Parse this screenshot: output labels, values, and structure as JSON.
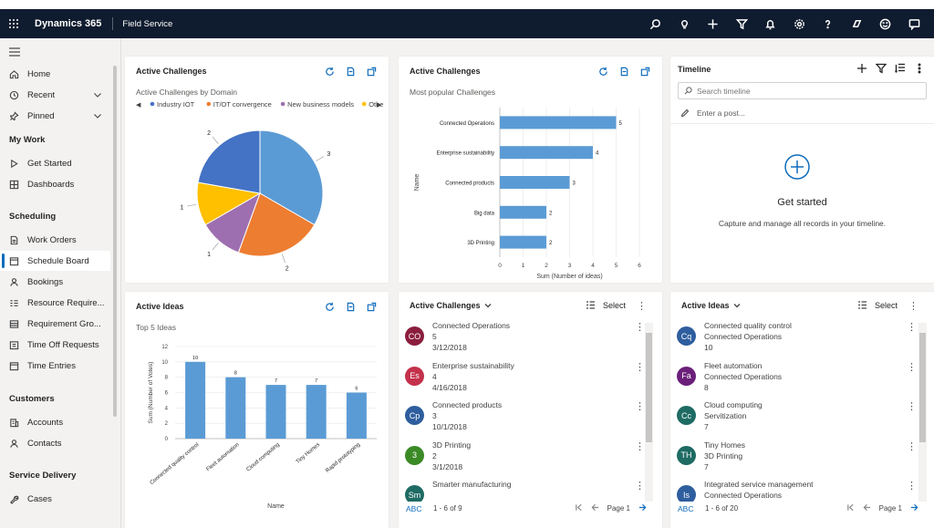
{
  "header": {
    "app_name": "Dynamics 365",
    "area_name": "Field Service",
    "icons": [
      "search-icon",
      "lightbulb-icon",
      "plus-icon",
      "filter-icon",
      "bell-icon",
      "gear-icon",
      "help-icon",
      "copilot-icon",
      "smiley-icon",
      "chat-icon"
    ]
  },
  "sidebar": {
    "items_top": [
      {
        "label": "Home",
        "icon": "home-icon"
      },
      {
        "label": "Recent",
        "icon": "clock-icon"
      },
      {
        "label": "Pinned",
        "icon": "pin-icon"
      }
    ],
    "sections": [
      {
        "title": "My Work",
        "items": [
          {
            "label": "Get Started",
            "icon": "play-icon"
          },
          {
            "label": "Dashboards",
            "icon": "dashboard-icon"
          }
        ]
      },
      {
        "title": "Scheduling",
        "items": [
          {
            "label": "Work Orders",
            "icon": "document-icon"
          },
          {
            "label": "Schedule Board",
            "icon": "calendar-icon"
          },
          {
            "label": "Bookings",
            "icon": "person-icon"
          },
          {
            "label": "Resource Require...",
            "icon": "list-icon"
          },
          {
            "label": "Requirement Gro...",
            "icon": "table-icon"
          },
          {
            "label": "Time Off Requests",
            "icon": "time-off-icon"
          },
          {
            "label": "Time Entries",
            "icon": "calendar-icon"
          }
        ]
      },
      {
        "title": "Customers",
        "items": [
          {
            "label": "Accounts",
            "icon": "building-icon"
          },
          {
            "label": "Contacts",
            "icon": "person-icon"
          }
        ]
      },
      {
        "title": "Service Delivery",
        "items": [
          {
            "label": "Cases",
            "icon": "wrench-icon"
          }
        ]
      }
    ],
    "active_item": "Schedule Board"
  },
  "cards": {
    "pie": {
      "title": "Active Challenges",
      "subtitle": "Active Challenges by Domain"
    },
    "bar_h": {
      "title": "Active Challenges",
      "subtitle": "Most popular Challenges"
    },
    "bar_v": {
      "title": "Active Ideas",
      "subtitle": "Top 5 Ideas"
    }
  },
  "timeline": {
    "title": "Timeline",
    "search_placeholder": "Search timeline",
    "post_placeholder": "Enter a post...",
    "empty_title": "Get started",
    "empty_text": "Capture and manage all records in your timeline."
  },
  "challenges_list": {
    "title": "Active Challenges",
    "select_label": "Select",
    "rows": [
      {
        "initials": "CO",
        "color": "#8b1e3f",
        "name": "Connected Operations",
        "value": "5",
        "date": "3/12/2018"
      },
      {
        "initials": "Es",
        "color": "#c4314b",
        "name": "Enterprise sustainability",
        "value": "4",
        "date": "4/16/2018"
      },
      {
        "initials": "Cp",
        "color": "#2e5e9e",
        "name": "Connected products",
        "value": "3",
        "date": "10/1/2018"
      },
      {
        "initials": "3",
        "color": "#3b8a26",
        "name": "3D Printing",
        "value": "2",
        "date": "3/1/2018"
      },
      {
        "initials": "Sm",
        "color": "#1e6b63",
        "name": "Smarter manufacturing",
        "value": "",
        "date": ""
      }
    ],
    "abc": "ABC",
    "count": "1 - 6 of 9",
    "page": "Page 1"
  },
  "ideas_list": {
    "title": "Active Ideas",
    "select_label": "Select",
    "rows": [
      {
        "initials": "Cq",
        "color": "#2e5e9e",
        "name": "Connected quality control",
        "value": "Connected Operations",
        "date": "10"
      },
      {
        "initials": "Fa",
        "color": "#6b1f7a",
        "name": "Fleet automation",
        "value": "Connected Operations",
        "date": "8"
      },
      {
        "initials": "Cc",
        "color": "#1e6b63",
        "name": "Cloud computing",
        "value": "Servitization",
        "date": "7"
      },
      {
        "initials": "TH",
        "color": "#1e6b63",
        "name": "Tiny Homes",
        "value": "3D Printing",
        "date": "7"
      },
      {
        "initials": "Is",
        "color": "#2e5e9e",
        "name": "Integrated service management",
        "value": "Connected Operations",
        "date": ""
      }
    ],
    "abc": "ABC",
    "count": "1 - 6 of 20",
    "page": "Page 1"
  },
  "chart_data": [
    {
      "type": "pie",
      "title": "Active Challenges by Domain",
      "legend": [
        "Industry IOT",
        "IT/OT convergence",
        "New business models",
        "Othe"
      ],
      "slices": [
        {
          "label": "3",
          "value": 3,
          "color": "#5b9bd5"
        },
        {
          "label": "2",
          "value": 2,
          "color": "#ed7d31"
        },
        {
          "label": "1",
          "value": 1,
          "color": "#9e6fb0"
        },
        {
          "label": "1",
          "value": 1,
          "color": "#ffc000"
        },
        {
          "label": "2",
          "value": 2,
          "color": "#4472c4"
        }
      ]
    },
    {
      "type": "bar",
      "orientation": "horizontal",
      "title": "Most popular Challenges",
      "categories": [
        "Connected Operations",
        "Enterprise sustainability",
        "Connected products",
        "Big data",
        "3D Printing"
      ],
      "values": [
        5,
        4,
        3,
        2,
        2
      ],
      "xlabel": "Sum (Number of ideas)",
      "ylabel": "Name",
      "xticks": [
        "0",
        "1",
        "2",
        "3",
        "4",
        "5",
        "6"
      ],
      "xlim": [
        0,
        6
      ],
      "color": "#5b9bd5"
    },
    {
      "type": "bar",
      "orientation": "vertical",
      "title": "Top 5 Ideas",
      "categories": [
        "Connected quality control",
        "Fleet automation",
        "Cloud computing",
        "Tiny Homes",
        "Rapid prototyping"
      ],
      "values": [
        10,
        8,
        7,
        7,
        6
      ],
      "xlabel": "Name",
      "ylabel": "Sum (Number of Votes)",
      "yticks": [
        "0",
        "2",
        "4",
        "6",
        "8",
        "10",
        "12"
      ],
      "ylim": [
        0,
        12
      ],
      "color": "#5b9bd5"
    }
  ]
}
